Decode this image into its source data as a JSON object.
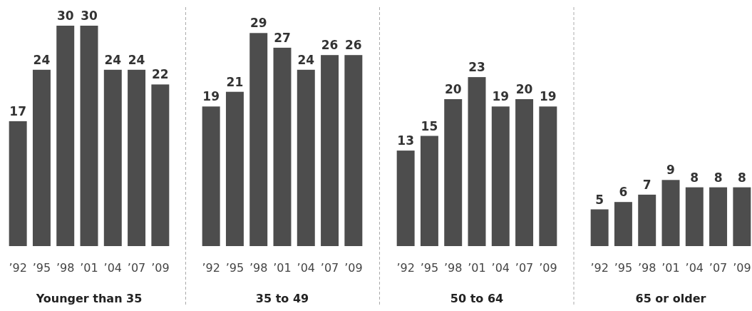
{
  "chart_data": [
    {
      "type": "bar",
      "xlabel": "Younger than 35",
      "categories": [
        "’92",
        "’95",
        "’98",
        "’01",
        "’04",
        "’07",
        "’09"
      ],
      "values": [
        17,
        24,
        30,
        30,
        24,
        24,
        22
      ],
      "color": "#4d4d4d",
      "data_labels": true
    },
    {
      "type": "bar",
      "xlabel": "35 to 49",
      "categories": [
        "’92",
        "’95",
        "’98",
        "’01",
        "’04",
        "’07",
        "’09"
      ],
      "values": [
        19,
        21,
        29,
        27,
        24,
        26,
        26
      ],
      "color": "#4d4d4d",
      "data_labels": true
    },
    {
      "type": "bar",
      "xlabel": "50 to 64",
      "categories": [
        "’92",
        "’95",
        "’98",
        "’01",
        "’04",
        "’07",
        "’09"
      ],
      "values": [
        13,
        15,
        20,
        23,
        19,
        20,
        19
      ],
      "color": "#4d4d4d",
      "data_labels": true
    },
    {
      "type": "bar",
      "xlabel": "65 or older",
      "categories": [
        "’92",
        "’95",
        "’98",
        "’01",
        "’04",
        "’07",
        "’09"
      ],
      "values": [
        5,
        6,
        7,
        9,
        8,
        8,
        8
      ],
      "color": "#4d4d4d",
      "data_labels": true
    }
  ]
}
